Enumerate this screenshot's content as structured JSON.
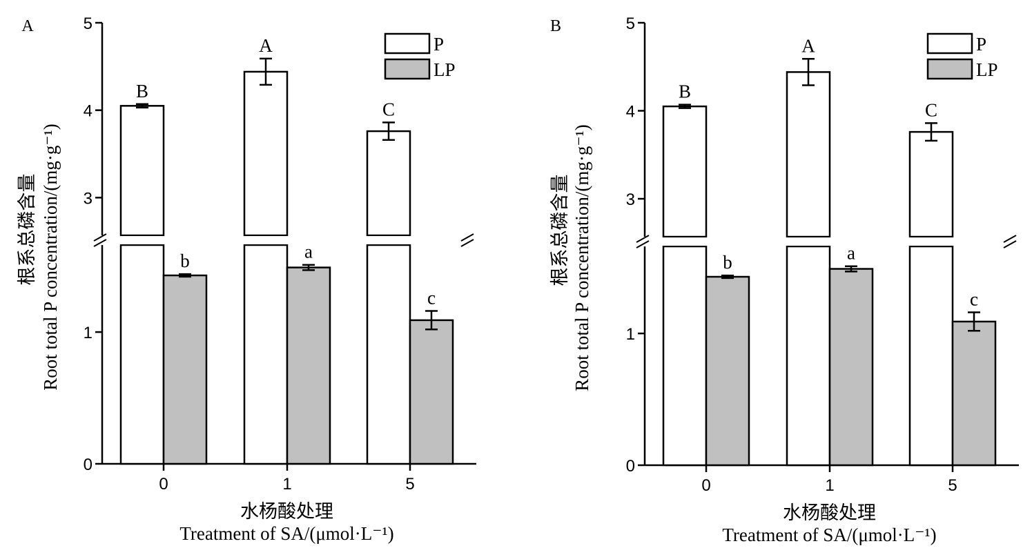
{
  "chart_data": [
    {
      "panel": "A",
      "type": "bar",
      "ylabel_cn": "根系总磷含量",
      "ylabel_en": "Root total P concentration/(mg·g⁻¹)",
      "xlabel_cn": "水杨酸处理",
      "xlabel_en": "Treatment of SA/(μmol·L⁻¹)",
      "categories": [
        "0",
        "1",
        "5"
      ],
      "yticks": [
        "0",
        "1",
        "3",
        "4",
        "5"
      ],
      "axis_break": true,
      "series": [
        {
          "name": "P",
          "values": [
            4.05,
            4.44,
            3.76
          ],
          "errors": [
            0.02,
            0.15,
            0.1
          ],
          "letters": [
            "B",
            "A",
            "C"
          ],
          "fill": "#ffffff"
        },
        {
          "name": "LP",
          "values": [
            1.43,
            1.49,
            1.09
          ],
          "errors": [
            0.01,
            0.02,
            0.07
          ],
          "letters": [
            "b",
            "a",
            "c"
          ],
          "fill": "#c0c0c0"
        }
      ],
      "legend": "top-right"
    },
    {
      "panel": "B",
      "type": "bar",
      "ylabel_cn": "根系总磷含量",
      "ylabel_en": "Root total P concentration/(mg·g⁻¹)",
      "xlabel_cn": "水杨酸处理",
      "xlabel_en": "Treatment of SA/(μmol·L⁻¹)",
      "categories": [
        "0",
        "1",
        "5"
      ],
      "yticks": [
        "0",
        "1",
        "3",
        "4",
        "5"
      ],
      "axis_break": true,
      "series": [
        {
          "name": "P",
          "values": [
            4.05,
            4.44,
            3.76
          ],
          "errors": [
            0.02,
            0.15,
            0.1
          ],
          "letters": [
            "B",
            "A",
            "C"
          ],
          "fill": "#ffffff"
        },
        {
          "name": "LP",
          "values": [
            1.43,
            1.49,
            1.09
          ],
          "errors": [
            0.01,
            0.02,
            0.07
          ],
          "letters": [
            "b",
            "a",
            "c"
          ],
          "fill": "#c0c0c0"
        }
      ],
      "legend": "top-right"
    }
  ]
}
